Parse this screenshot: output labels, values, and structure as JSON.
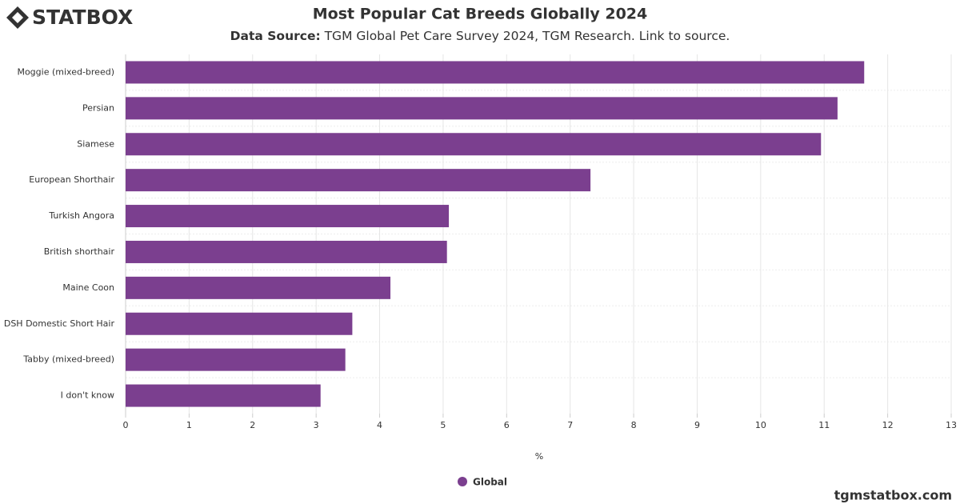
{
  "logo": "STATBOX",
  "footer": "tgmstatbox.com",
  "chart_data": {
    "type": "bar",
    "orientation": "horizontal",
    "title": "Most Popular Cat Breeds Globally 2024",
    "subtitle_label": "Data Source:",
    "subtitle": "TGM Global Pet Care Survey 2024, TGM Research. Link to source.",
    "x_label": "%",
    "categories": [
      "Moggie (mixed-breed)",
      "Persian",
      "Siamese",
      "European Shorthair",
      "Turkish Angora",
      "British shorthair",
      "Maine Coon",
      "DSH Domestic Short Hair",
      "Tabby (mixed-breed)",
      "I don't know"
    ],
    "series": [
      {
        "name": "Global",
        "color": "#7b3f8f",
        "values": [
          11.63,
          11.21,
          10.95,
          7.32,
          5.09,
          5.06,
          4.17,
          3.57,
          3.46,
          3.07
        ]
      }
    ],
    "xlim": [
      0,
      13
    ],
    "xticks": [
      0,
      1,
      2,
      3,
      4,
      5,
      6,
      7,
      8,
      9,
      10,
      11,
      12,
      13
    ],
    "grid": true,
    "legend": "bottom"
  }
}
